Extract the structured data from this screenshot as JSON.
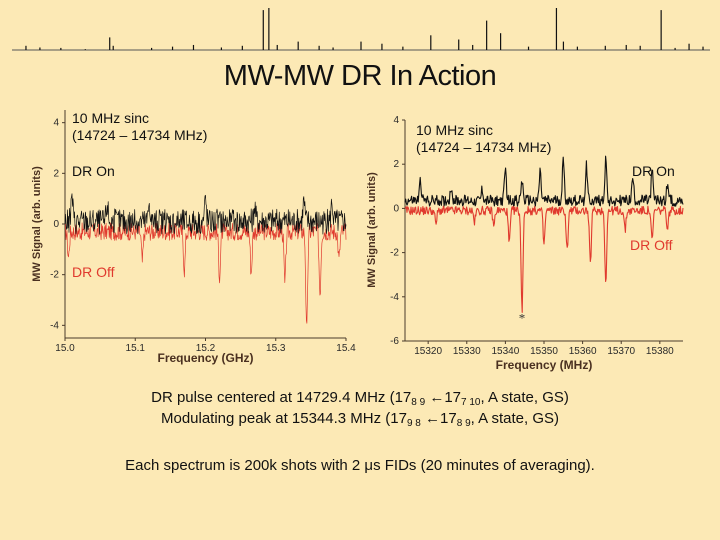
{
  "title": "MW-MW DR In Action",
  "colors": {
    "dr_on": "#111111",
    "dr_off": "#E03A2E",
    "background": "#FCE9B5",
    "axis": "#4a3a2a"
  },
  "chart_data": [
    {
      "type": "line",
      "name": "left-panel",
      "label_sinc_line1": "10 MHz sinc",
      "label_sinc_line2": "(14724 – 14734 MHz)",
      "legend_on": "DR On",
      "legend_off": "DR Off",
      "xlabel": "Frequency (GHz)",
      "ylabel": "MW Signal (arb. units)",
      "xlim": [
        15.0,
        15.4
      ],
      "ylim": [
        -4.5,
        4.5
      ],
      "xticks": [
        "15.0",
        "15.1",
        "15.2",
        "15.3",
        "15.4"
      ],
      "yticks": [
        "4",
        "2",
        "0",
        "-2",
        "-4"
      ],
      "series": [
        {
          "name": "DR On",
          "baseline": 0.1,
          "noise": 0.5,
          "peaks": [
            [
              15.01,
              1.0
            ],
            [
              15.06,
              0.7
            ],
            [
              15.12,
              0.8
            ],
            [
              15.2,
              0.9
            ],
            [
              15.27,
              0.6
            ],
            [
              15.34,
              0.8
            ],
            [
              15.38,
              0.7
            ]
          ]
        },
        {
          "name": "DR Off",
          "baseline": -0.3,
          "noise": 0.35,
          "peaks": [
            [
              15.005,
              -1.0
            ],
            [
              15.11,
              -1.2
            ],
            [
              15.17,
              -1.5
            ],
            [
              15.22,
              -1.7
            ],
            [
              15.265,
              -1.6
            ],
            [
              15.313,
              -2.1
            ],
            [
              15.344,
              -4.0
            ],
            [
              15.363,
              -2.4
            ],
            [
              15.39,
              -1.1
            ]
          ]
        }
      ]
    },
    {
      "type": "line",
      "name": "right-panel",
      "label_sinc_line1": "10 MHz sinc",
      "label_sinc_line2": "(14724 – 14734 MHz)",
      "legend_on": "DR On",
      "legend_off": "DR Off",
      "annotation": "*",
      "xlabel": "Frequency (MHz)",
      "ylabel": "MW Signal (arb. units)",
      "xlim": [
        15314,
        15386
      ],
      "ylim": [
        -6,
        4
      ],
      "xticks": [
        "15320",
        "15330",
        "15340",
        "15350",
        "15360",
        "15370",
        "15380"
      ],
      "yticks": [
        "4",
        "2",
        "0",
        "-2",
        "-4",
        "-6"
      ],
      "series": [
        {
          "name": "DR On",
          "baseline": 0.35,
          "noise": 0.25,
          "peaks": [
            [
              15318,
              0.9
            ],
            [
              15326,
              0.6
            ],
            [
              15334,
              0.5
            ],
            [
              15340,
              1.4
            ],
            [
              15344.3,
              0.9
            ],
            [
              15349,
              1.3
            ],
            [
              15355,
              1.8
            ],
            [
              15361,
              1.6
            ],
            [
              15366,
              1.9
            ],
            [
              15373,
              1.0
            ],
            [
              15378,
              1.3
            ],
            [
              15382,
              0.8
            ]
          ]
        },
        {
          "name": "DR Off",
          "baseline": -0.1,
          "noise": 0.2,
          "peaks": [
            [
              15322,
              -0.6
            ],
            [
              15332,
              -0.5
            ],
            [
              15337,
              -0.7
            ],
            [
              15341,
              -1.5
            ],
            [
              15344.3,
              -4.5
            ],
            [
              15350,
              -1.5
            ],
            [
              15356,
              -1.8
            ],
            [
              15362,
              -2.4
            ],
            [
              15366,
              -3.2
            ],
            [
              15371,
              -0.9
            ],
            [
              15378,
              -1.4
            ],
            [
              15382,
              -0.8
            ]
          ]
        }
      ]
    },
    {
      "type": "line",
      "name": "top-stick-spectrum",
      "sticks": [
        [
          0.02,
          0.1
        ],
        [
          0.04,
          0.06
        ],
        [
          0.07,
          0.05
        ],
        [
          0.105,
          0.02
        ],
        [
          0.14,
          0.3
        ],
        [
          0.145,
          0.1
        ],
        [
          0.2,
          0.05
        ],
        [
          0.23,
          0.08
        ],
        [
          0.26,
          0.12
        ],
        [
          0.3,
          0.06
        ],
        [
          0.33,
          0.1
        ],
        [
          0.36,
          0.95
        ],
        [
          0.368,
          1.0
        ],
        [
          0.38,
          0.12
        ],
        [
          0.41,
          0.2
        ],
        [
          0.44,
          0.1
        ],
        [
          0.46,
          0.06
        ],
        [
          0.5,
          0.2
        ],
        [
          0.53,
          0.15
        ],
        [
          0.56,
          0.08
        ],
        [
          0.6,
          0.35
        ],
        [
          0.64,
          0.25
        ],
        [
          0.66,
          0.12
        ],
        [
          0.68,
          0.7
        ],
        [
          0.7,
          0.4
        ],
        [
          0.74,
          0.08
        ],
        [
          0.78,
          1.0
        ],
        [
          0.79,
          0.2
        ],
        [
          0.81,
          0.08
        ],
        [
          0.85,
          0.1
        ],
        [
          0.88,
          0.12
        ],
        [
          0.9,
          0.1
        ],
        [
          0.93,
          0.95
        ],
        [
          0.95,
          0.05
        ],
        [
          0.97,
          0.15
        ],
        [
          0.99,
          0.08
        ]
      ]
    }
  ],
  "caption": {
    "line1_a": "DR pulse centered at 14729.4 MHz (17",
    "line1_sub1": "8 9",
    "line1_b": " ←17",
    "line1_sub2": "7 10",
    "line1_c": ", A state, GS)",
    "line2_a": "Modulating peak at 15344.3 MHz (17",
    "line2_sub1": "9 8",
    "line2_b": " ←17",
    "line2_sub2": "8 9",
    "line2_c": ", A state, GS)"
  },
  "footer": "Each spectrum is 200k shots with 2 μs FIDs (20 minutes of averaging)."
}
